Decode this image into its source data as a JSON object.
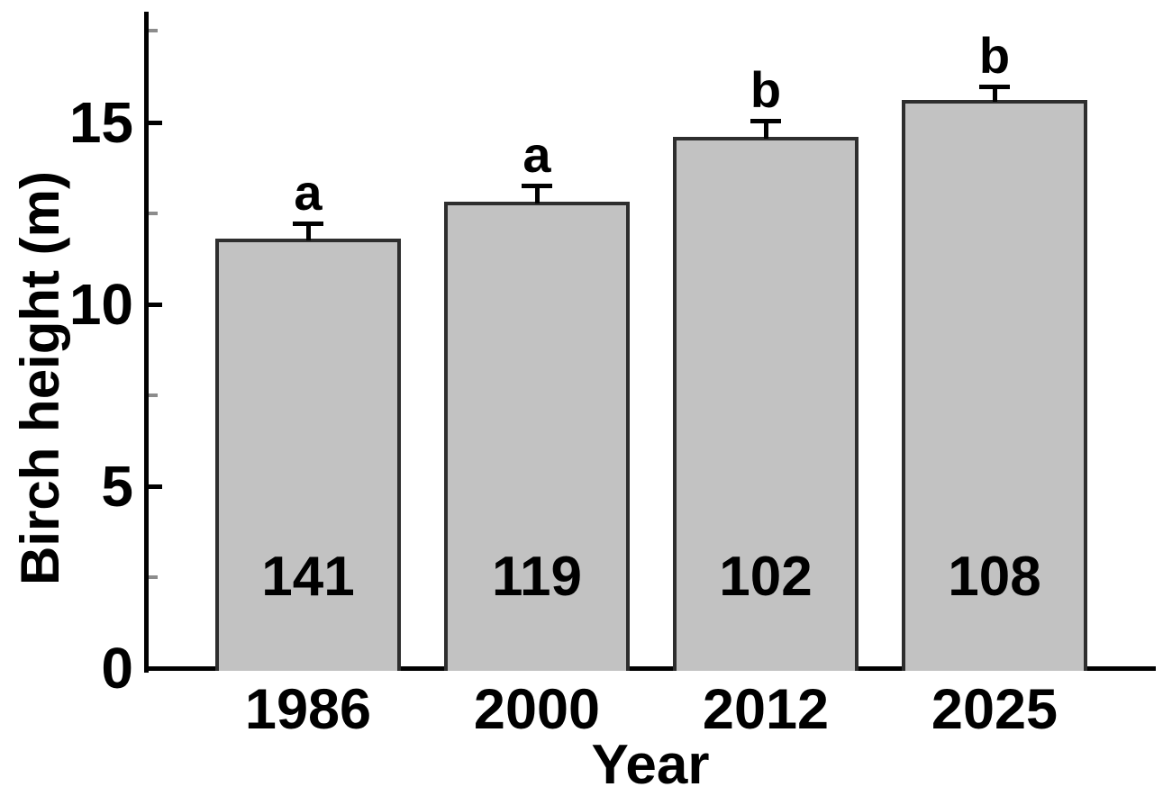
{
  "chart_data": {
    "type": "bar",
    "title": "",
    "xlabel": "Year",
    "ylabel": "Birch height (m)",
    "categories": [
      "1986",
      "2000",
      "2012",
      "2025"
    ],
    "series": [
      {
        "name": "Birch height",
        "values": [
          11.8,
          12.8,
          14.6,
          15.6
        ]
      }
    ],
    "error_bars_upper": [
      0.42,
      0.45,
      0.45,
      0.38
    ],
    "sample_sizes": [
      "141",
      "119",
      "102",
      "108"
    ],
    "significance_letters": [
      "a",
      "a",
      "b",
      "b"
    ],
    "ylim": [
      0,
      18
    ],
    "yticks_major": [
      0,
      5,
      10,
      15
    ],
    "ytick_labels": [
      "0",
      "5",
      "10",
      "15"
    ],
    "yticks_minor": [
      2.5,
      7.5,
      12.5,
      17.5
    ],
    "grid": false,
    "legend": false,
    "colors": {
      "bar_fill": "#c2c2c2",
      "bar_border": "#2e2e2e",
      "axis": "#000000",
      "minor_tick": "#8c8c8c",
      "text": "#000000",
      "background": "#ffffff"
    }
  }
}
